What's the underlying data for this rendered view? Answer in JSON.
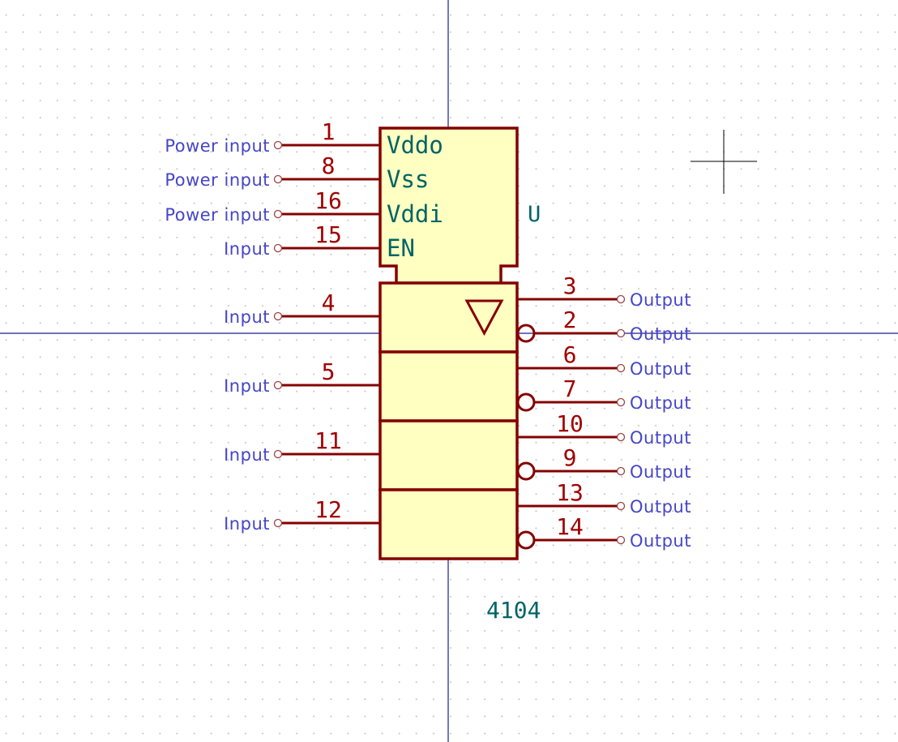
{
  "component": {
    "reference": "U",
    "value": "4104",
    "power_pins": [
      {
        "number": "1",
        "name": "Vddo",
        "type": "Power input"
      },
      {
        "number": "8",
        "name": "Vss",
        "type": "Power input"
      },
      {
        "number": "16",
        "name": "Vddi",
        "type": "Power input"
      },
      {
        "number": "15",
        "name": "EN",
        "type": "Input"
      }
    ],
    "input_pins": [
      {
        "number": "4",
        "type": "Input"
      },
      {
        "number": "5",
        "type": "Input"
      },
      {
        "number": "11",
        "type": "Input"
      },
      {
        "number": "12",
        "type": "Input"
      }
    ],
    "output_pins": [
      {
        "number": "3",
        "type": "Output",
        "inverted": false
      },
      {
        "number": "2",
        "type": "Output",
        "inverted": true
      },
      {
        "number": "6",
        "type": "Output",
        "inverted": false
      },
      {
        "number": "7",
        "type": "Output",
        "inverted": true
      },
      {
        "number": "10",
        "type": "Output",
        "inverted": false
      },
      {
        "number": "9",
        "type": "Output",
        "inverted": true
      },
      {
        "number": "13",
        "type": "Output",
        "inverted": false
      },
      {
        "number": "14",
        "type": "Output",
        "inverted": true
      }
    ],
    "unit_symbol": "triangle-down-icon"
  },
  "colors": {
    "body_fill": "#ffffc2",
    "outline": "#840000",
    "pin_number": "#a00000",
    "pin_name": "#006464",
    "electrical_type": "#4545c8",
    "crosshair": "#1a1a8a"
  }
}
